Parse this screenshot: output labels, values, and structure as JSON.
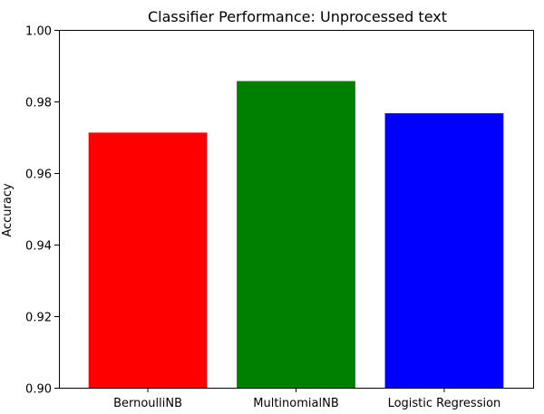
{
  "chart_data": {
    "type": "bar",
    "title": "Classifier Performance: Unprocessed text",
    "xlabel": "",
    "ylabel": "Accuracy",
    "categories": [
      "BernoulliNB",
      "MultinomialNB",
      "Logistic Regression"
    ],
    "values": [
      0.9713,
      0.9857,
      0.9767
    ],
    "colors": [
      "#ff0000",
      "#008000",
      "#0000ff"
    ],
    "ylim": [
      0.9,
      1.0
    ],
    "yticks": [
      0.9,
      0.92,
      0.94,
      0.96,
      0.98,
      1.0
    ],
    "ytick_labels": [
      "0.90",
      "0.92",
      "0.94",
      "0.96",
      "0.98",
      "1.00"
    ],
    "grid": false,
    "legend": "none"
  }
}
